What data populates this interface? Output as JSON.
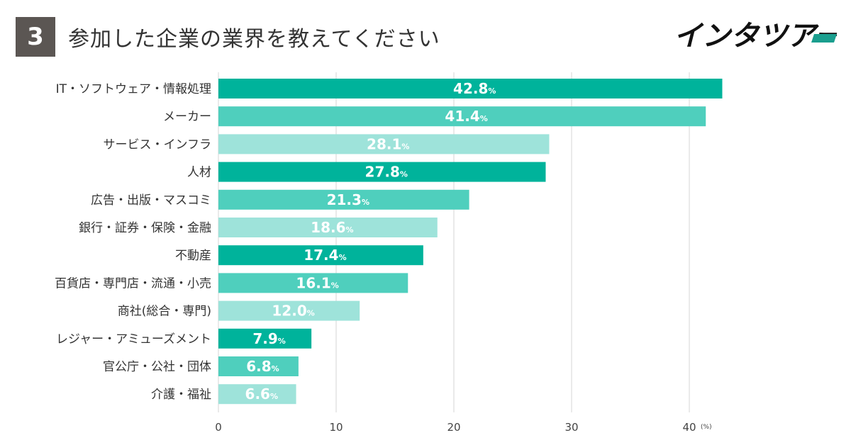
{
  "header": {
    "question_number": "3",
    "title": "参加した企業の業界を教えてください",
    "logo_text": "インタツアー"
  },
  "colors": {
    "dark": "#00b39b",
    "medium": "#4fcfbd",
    "light": "#9ee3da",
    "badge": "#5b5653",
    "logo_accent": "#1a9e8e"
  },
  "chart_data": {
    "type": "bar",
    "orientation": "horizontal",
    "title": "参加した企業の業界を教えてください",
    "categories": [
      "IT・ソフトウェア・情報処理",
      "メーカー",
      "サービス・インフラ",
      "人材",
      "広告・出版・マスコミ",
      "銀行・証券・保険・金融",
      "不動産",
      "百貨店・専門店・流通・小売",
      "商社(総合・専門)",
      "レジャー・アミューズメント",
      "官公庁・公社・団体",
      "介護・福祉"
    ],
    "values": [
      42.8,
      41.4,
      28.1,
      27.8,
      21.3,
      18.6,
      17.4,
      16.1,
      12.0,
      7.9,
      6.8,
      6.6
    ],
    "value_labels": [
      "42.8",
      "41.4",
      "28.1",
      "27.8",
      "21.3",
      "18.6",
      "17.4",
      "16.1",
      "12.0",
      "7.9",
      "6.8",
      "6.6"
    ],
    "value_unit": "%",
    "bar_colors": [
      "dark",
      "medium",
      "light",
      "dark",
      "medium",
      "light",
      "dark",
      "medium",
      "light",
      "dark",
      "medium",
      "light"
    ],
    "xlim": [
      0,
      50
    ],
    "xticks": [
      0,
      10,
      20,
      30,
      40
    ],
    "xtick_labels": [
      "0",
      "10",
      "20",
      "30",
      "40"
    ],
    "xaxis_unit": "(%)",
    "grid": true
  }
}
